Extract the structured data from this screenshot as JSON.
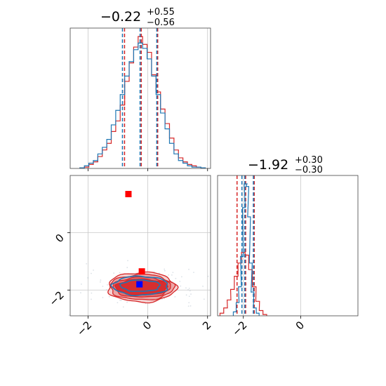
{
  "colors": {
    "series_a": "#d62728",
    "series_b": "#1f77b4",
    "truth_a": "#ff0000",
    "truth_b": "#0000ff",
    "grid": "#c8c8c8",
    "axis": "#000000"
  },
  "titles": {
    "param1": {
      "median": "−0.22",
      "upper": "+0.55",
      "lower": "−0.56"
    },
    "param2": {
      "median": "−1.92",
      "upper": "+0.30",
      "lower": "−0.30"
    }
  },
  "ticks": {
    "param1_x": [
      {
        "value": -2,
        "label": "−2"
      },
      {
        "value": 0,
        "label": "0"
      },
      {
        "value": 2,
        "label": "2"
      }
    ],
    "param2_y": [
      {
        "value": 0,
        "label": "0"
      },
      {
        "value": -2,
        "label": "−2"
      }
    ],
    "param2_x": [
      {
        "value": -2,
        "label": "−2"
      },
      {
        "value": 0,
        "label": "0"
      }
    ]
  },
  "chart_data": [
    {
      "type": "histogram",
      "xlim": [
        -2.6,
        2.1
      ],
      "grid": true,
      "series": [
        {
          "color": "#d62728",
          "quantiles": [
            -0.78,
            -0.22,
            0.33
          ],
          "bins_x": [
            -2.2,
            -2.05,
            -1.9,
            -1.75,
            -1.6,
            -1.45,
            -1.3,
            -1.15,
            -1.0,
            -0.85,
            -0.7,
            -0.55,
            -0.4,
            -0.25,
            -0.1,
            0.05,
            0.2,
            0.35,
            0.5,
            0.65,
            0.8,
            0.95,
            1.1,
            1.25,
            1.4,
            1.55,
            1.7,
            1.85
          ],
          "counts": [
            0.5,
            1,
            3,
            5,
            9,
            14,
            19,
            28,
            36,
            48,
            66,
            80,
            92,
            100,
            94,
            88,
            71,
            58,
            45,
            34,
            23,
            14,
            8,
            5,
            3,
            2,
            1,
            0.5
          ]
        },
        {
          "color": "#1f77b4",
          "quantiles": [
            -0.85,
            -0.26,
            0.3
          ],
          "bins_x": [
            -2.2,
            -2.05,
            -1.9,
            -1.75,
            -1.6,
            -1.45,
            -1.3,
            -1.15,
            -1.0,
            -0.85,
            -0.7,
            -0.55,
            -0.4,
            -0.25,
            -0.1,
            0.05,
            0.2,
            0.35,
            0.5,
            0.65,
            0.8,
            0.95,
            1.1,
            1.25,
            1.4,
            1.55,
            1.7,
            1.85
          ],
          "counts": [
            0.5,
            2,
            4,
            6,
            11,
            16,
            22,
            33,
            44,
            56,
            70,
            81,
            90,
            95,
            91,
            83,
            70,
            56,
            42,
            30,
            19,
            11,
            6,
            4,
            2,
            1,
            1,
            0.5
          ]
        }
      ]
    },
    {
      "type": "contour",
      "xlim": [
        -2.6,
        2.1
      ],
      "ylim": [
        -2.9,
        2.0
      ],
      "grid": true,
      "series": [
        {
          "color": "#d62728",
          "center": [
            -0.2,
            -1.9
          ],
          "levels_sigma": [
            [
              1.45,
              0.28
            ],
            [
              1.6,
              0.35
            ],
            [
              1.78,
              0.44
            ],
            [
              1.9,
              0.52
            ]
          ]
        },
        {
          "color": "#1f77b4",
          "center": [
            -0.25,
            -1.85
          ],
          "levels_sigma": [
            [
              1.1,
              0.2
            ],
            [
              1.55,
              0.33
            ]
          ]
        }
      ],
      "markers": [
        {
          "color": "#ff0000",
          "x": -0.65,
          "y": 1.35
        },
        {
          "color": "#ff0000",
          "x": -0.2,
          "y": -1.35
        },
        {
          "color": "#0000ff",
          "x": -0.28,
          "y": -1.8
        }
      ]
    },
    {
      "type": "histogram",
      "xlim": [
        -2.9,
        2.0
      ],
      "grid": true,
      "series": [
        {
          "color": "#d62728",
          "quantiles": [
            -2.22,
            -1.92,
            -1.62
          ],
          "bins_x": [
            -2.75,
            -2.62,
            -2.5,
            -2.38,
            -2.25,
            -2.12,
            -2.0,
            -1.88,
            -1.75,
            -1.62,
            -1.5,
            -1.38,
            -1.25
          ],
          "counts": [
            2,
            6,
            12,
            20,
            30,
            40,
            48,
            46,
            35,
            22,
            11,
            4,
            1
          ]
        },
        {
          "color": "#1f77b4",
          "quantiles": [
            -2.05,
            -1.95,
            -1.65
          ],
          "bins_x": [
            -2.3,
            -2.2,
            -2.12,
            -2.05,
            -1.98,
            -1.92,
            -1.86,
            -1.8,
            -1.74,
            -1.68,
            -1.6,
            -1.5
          ],
          "counts": [
            3,
            10,
            22,
            45,
            82,
            100,
            98,
            75,
            40,
            18,
            6,
            2
          ]
        }
      ]
    }
  ]
}
